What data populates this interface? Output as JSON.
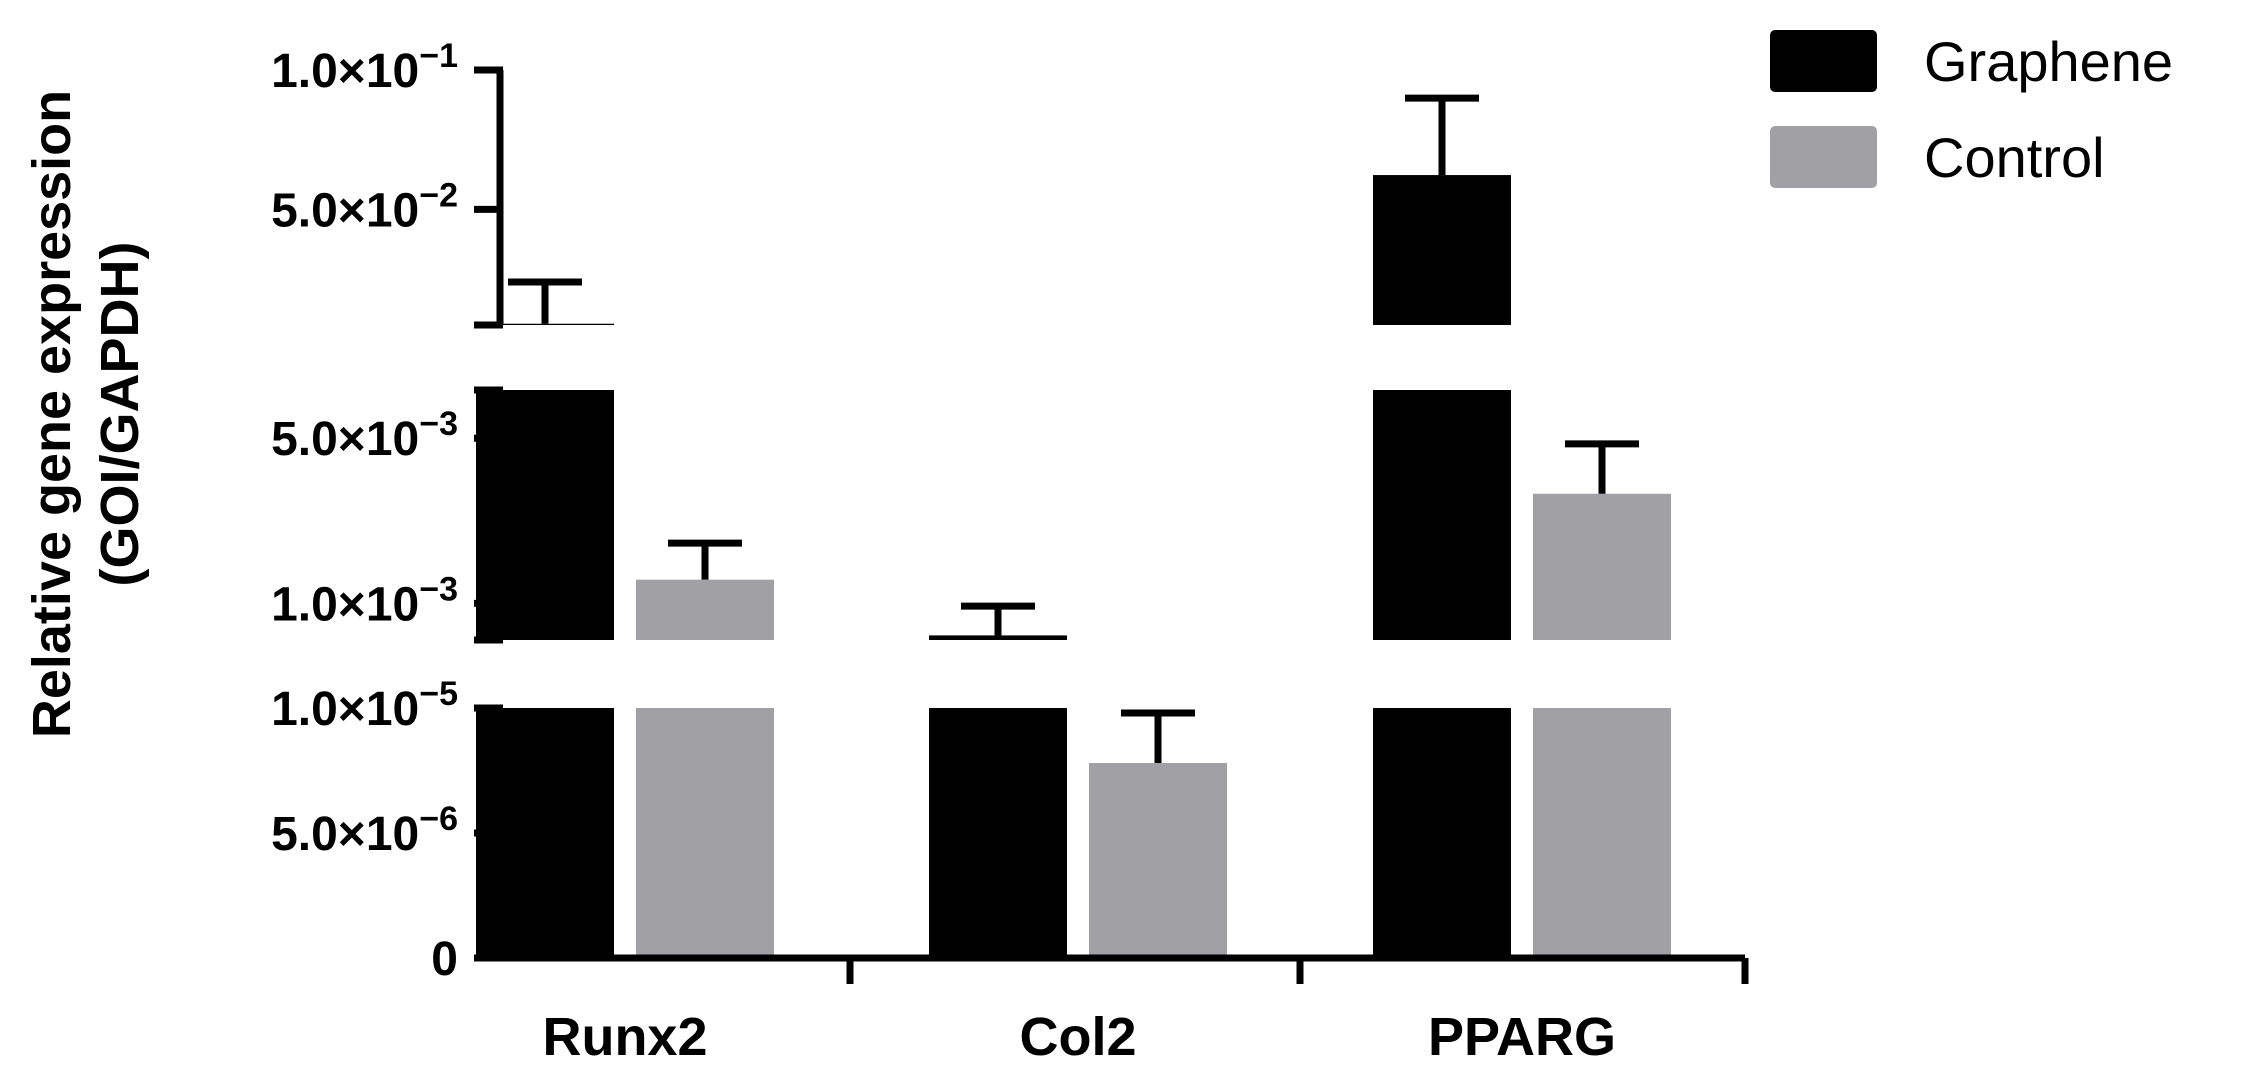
{
  "chart_data": {
    "type": "bar",
    "categories": [
      "Runx2",
      "Col2",
      "PPARG"
    ],
    "series": [
      {
        "name": "Graphene",
        "color": "#000000",
        "values": [
          0.00895,
          0.000732,
          0.0623
        ],
        "error": [
          0.015,
          0.000242,
          0.0276
        ]
      },
      {
        "name": "Control",
        "color": "#a1a0a5",
        "values": [
          0.00126,
          7.8e-06,
          0.00291
        ],
        "error": [
          0.00054,
          2e-06,
          0.00182
        ]
      }
    ],
    "ylabel_line1": "Relative gene expression",
    "ylabel_line2": "(GOI/GAPDH)",
    "xlabel": "",
    "title": "",
    "y_axis": {
      "broken": true,
      "segments": [
        {
          "range": [
            0,
            1e-05
          ],
          "scale": "linear"
        },
        {
          "range": [
            0.0007,
            0.008
          ],
          "scale": "log"
        },
        {
          "range": [
            0.0085,
            0.1
          ],
          "scale": "linear"
        }
      ],
      "ticks": [
        {
          "value": 0,
          "mant": "0",
          "exp": ""
        },
        {
          "value": 5e-06,
          "mant": "5.0×10",
          "exp": "−6"
        },
        {
          "value": 1e-05,
          "mant": "1.0×10",
          "exp": "−5"
        },
        {
          "value": 0.001,
          "mant": "1.0×10",
          "exp": "−3"
        },
        {
          "value": 0.005,
          "mant": "5.0×10",
          "exp": "−3"
        },
        {
          "value": 0.05,
          "mant": "5.0×10",
          "exp": "−2"
        },
        {
          "value": 0.1,
          "mant": "1.0×10",
          "exp": "−1"
        }
      ]
    },
    "legend_position": "top-right",
    "grid": false
  }
}
